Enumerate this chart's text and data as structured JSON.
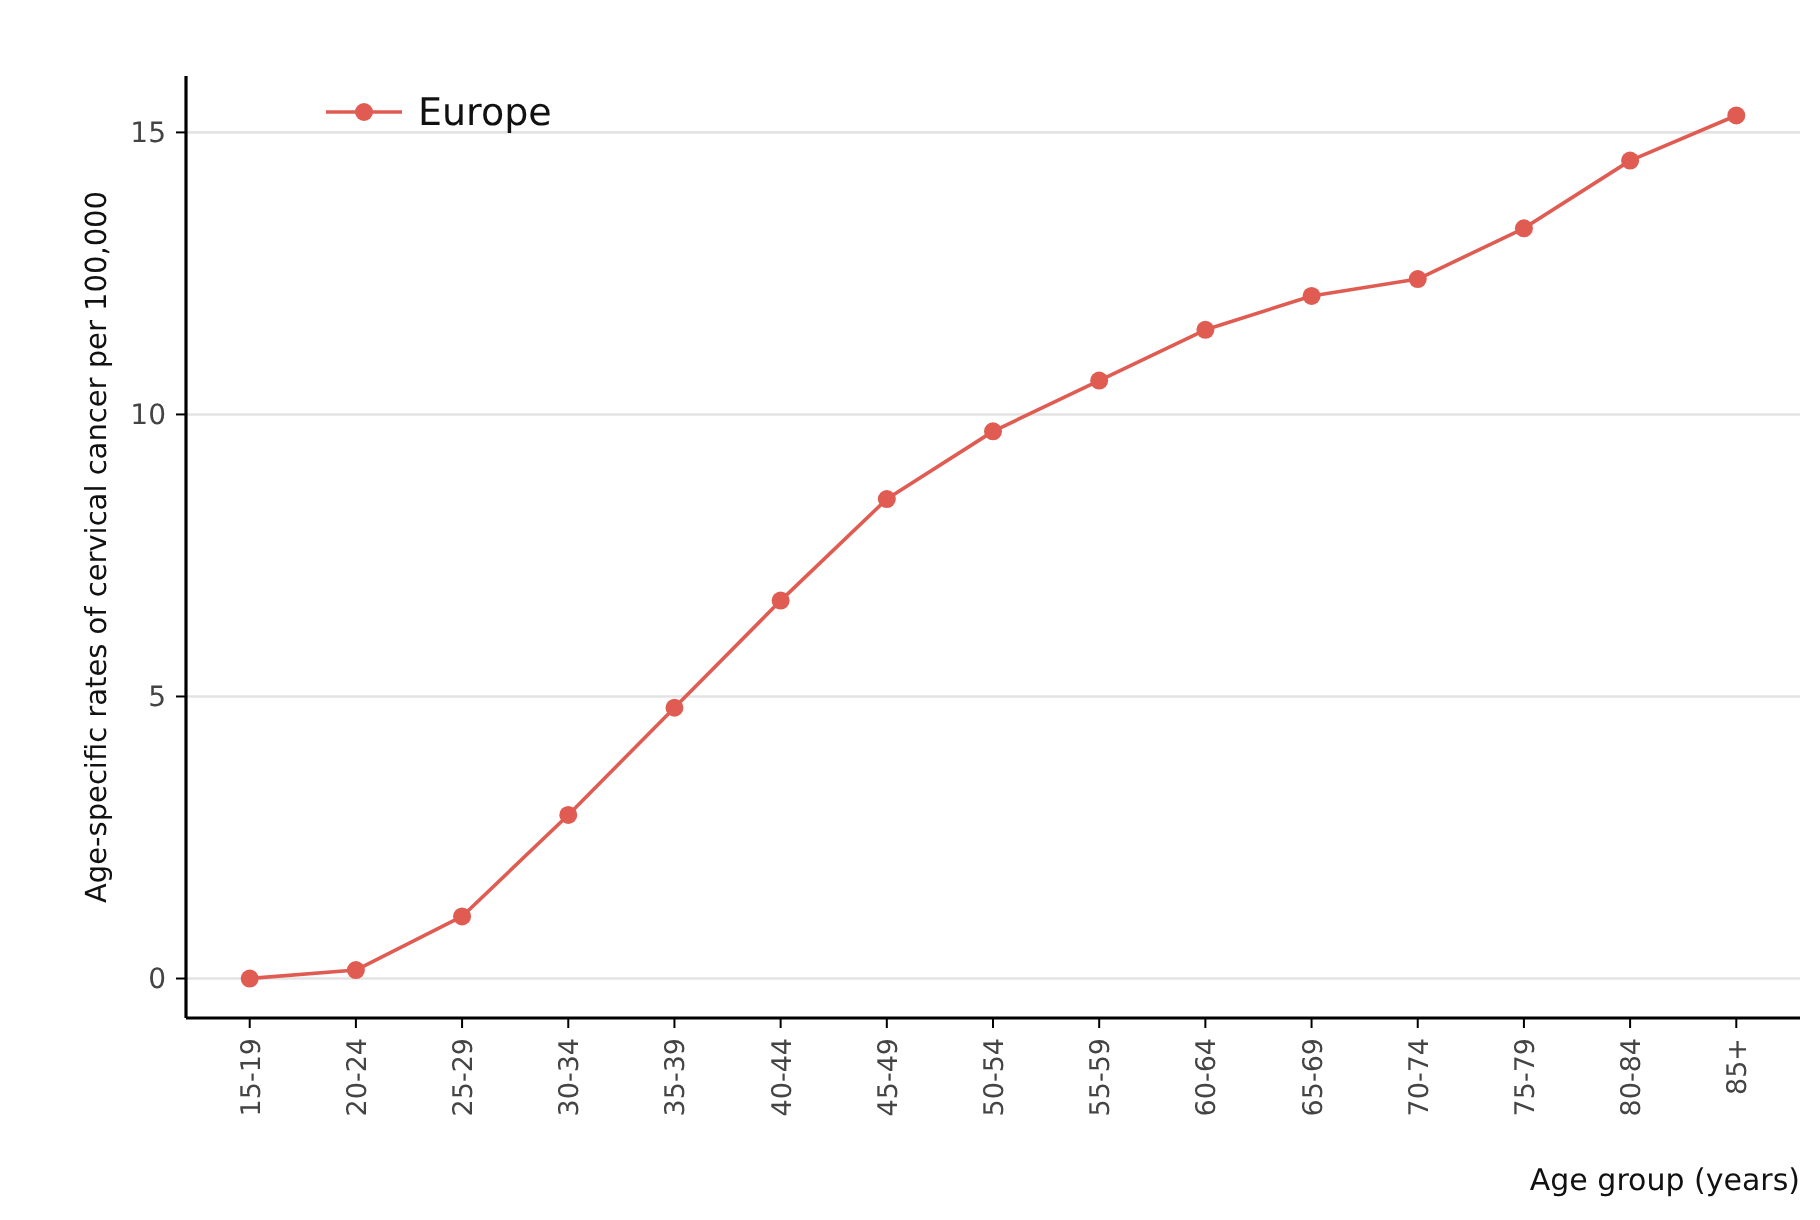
{
  "chart_data": {
    "type": "line",
    "xlabel": "Age group (years)",
    "ylabel": "Age-specific rates of cervical cancer per 100,000",
    "categories": [
      "15-19",
      "20-24",
      "25-29",
      "30-34",
      "35-39",
      "40-44",
      "45-49",
      "50-54",
      "55-59",
      "60-64",
      "65-69",
      "70-74",
      "75-79",
      "80-84",
      "85+"
    ],
    "series": [
      {
        "name": "Europe",
        "color": "#e05c52",
        "values": [
          0,
          0.15,
          1.1,
          2.9,
          4.8,
          6.7,
          8.5,
          9.7,
          10.6,
          11.5,
          12.1,
          12.4,
          13.3,
          14.5,
          15.3
        ]
      }
    ],
    "ylim": [
      -0.7,
      16
    ],
    "yticks": [
      0,
      5,
      10,
      15
    ],
    "grid": "y",
    "legend": "top left",
    "marker": "circle",
    "line_style": "solid"
  }
}
